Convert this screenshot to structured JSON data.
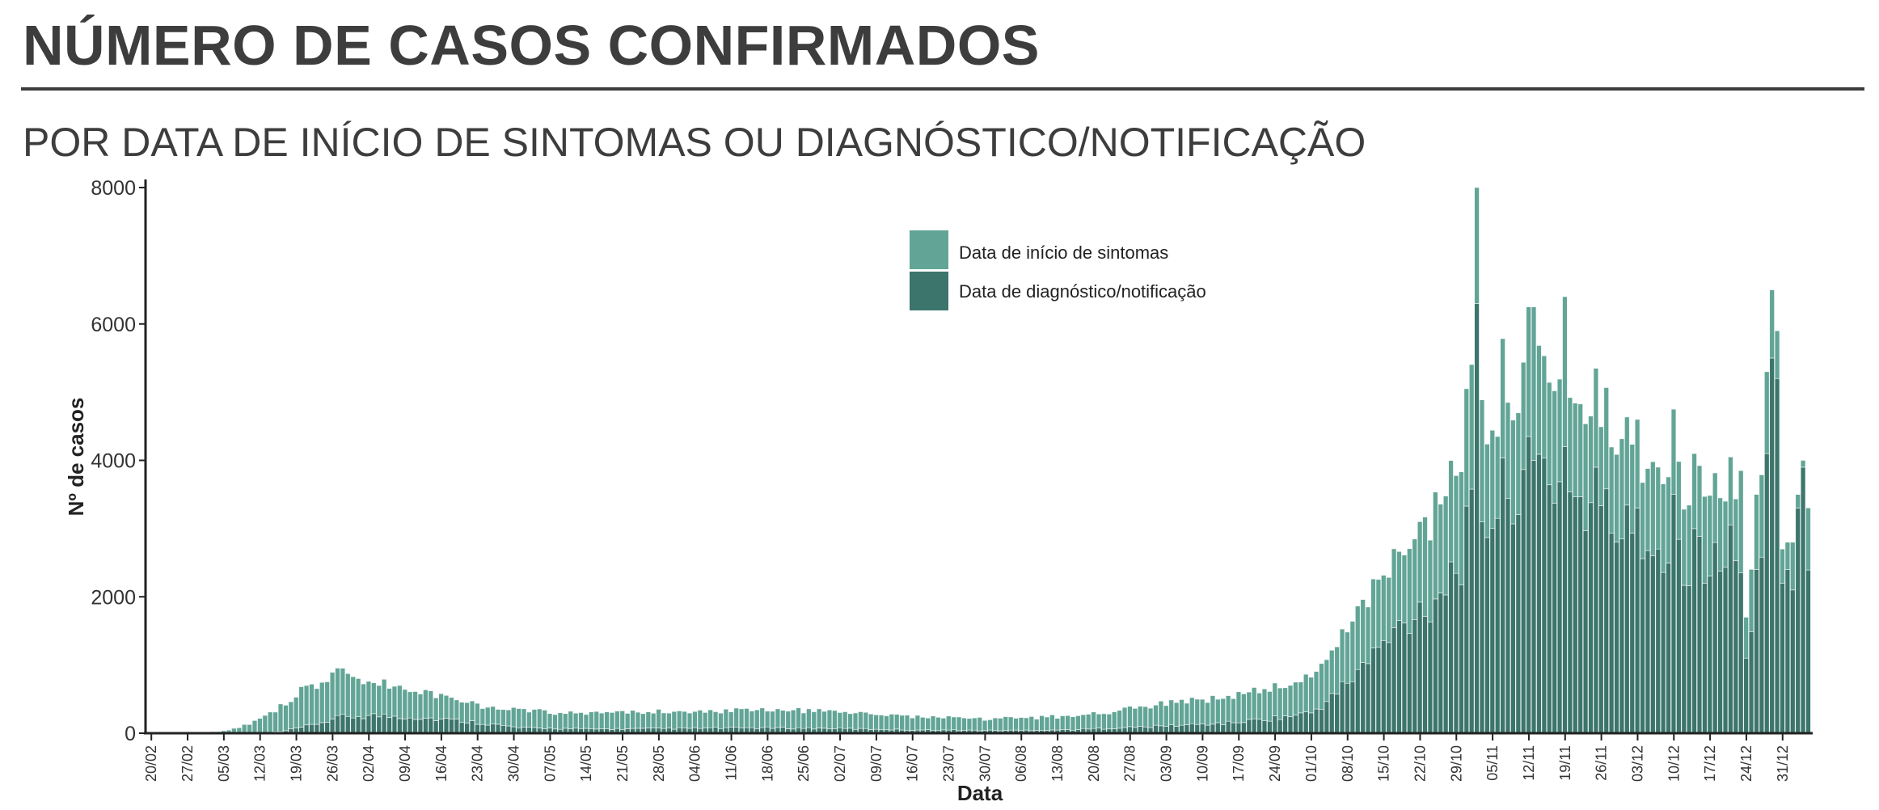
{
  "header": {
    "title": "NÚMERO DE CASOS CONFIRMADOS",
    "subtitle": "POR DATA DE INÍCIO DE SINTOMAS OU DIAGNÓSTICO/NOTIFICAÇÃO"
  },
  "colors": {
    "sintomas": "#62a596",
    "diagnostico": "#3c756b",
    "bar_edge": "#f3f7f6",
    "axis": "#222222"
  },
  "chart_data": {
    "type": "bar",
    "stacked": true,
    "title": "",
    "xlabel": "Data",
    "ylabel": "Nº de casos",
    "ylim": [
      0,
      8000
    ],
    "yticks": [
      0,
      2000,
      4000,
      6000,
      8000
    ],
    "x_start": "2020-02-20",
    "x_end": "2021-01-05",
    "xtick_labels": [
      "20/02",
      "27/02",
      "05/03",
      "12/03",
      "19/03",
      "26/03",
      "02/04",
      "09/04",
      "16/04",
      "23/04",
      "30/04",
      "07/05",
      "14/05",
      "21/05",
      "28/05",
      "04/06",
      "11/06",
      "18/06",
      "25/06",
      "02/07",
      "09/07",
      "16/07",
      "23/07",
      "30/07",
      "06/08",
      "13/08",
      "20/08",
      "27/08",
      "03/09",
      "10/09",
      "17/09",
      "24/09",
      "01/10",
      "08/10",
      "15/10",
      "22/10",
      "29/10",
      "05/11",
      "12/11",
      "19/11",
      "26/11",
      "03/12",
      "10/12",
      "17/12",
      "24/12",
      "31/12"
    ],
    "legend": {
      "position": "top-center",
      "entries": [
        "Data de início de sintomas",
        "Data de diagnóstico/notificação"
      ]
    },
    "grid": false,
    "series": [
      {
        "name": "Data de início de sintomas",
        "anchors": [
          [
            "2020-02-20",
            0
          ],
          [
            "2020-03-01",
            5
          ],
          [
            "2020-03-05",
            30
          ],
          [
            "2020-03-08",
            80
          ],
          [
            "2020-03-12",
            200
          ],
          [
            "2020-03-16",
            380
          ],
          [
            "2020-03-20",
            520
          ],
          [
            "2020-03-24",
            600
          ],
          [
            "2020-03-28",
            620
          ],
          [
            "2020-04-01",
            560
          ],
          [
            "2020-04-05",
            480
          ],
          [
            "2020-04-09",
            440
          ],
          [
            "2020-04-14",
            380
          ],
          [
            "2020-04-20",
            300
          ],
          [
            "2020-04-26",
            250
          ],
          [
            "2020-05-03",
            250
          ],
          [
            "2020-05-12",
            230
          ],
          [
            "2020-05-22",
            240
          ],
          [
            "2020-06-01",
            240
          ],
          [
            "2020-06-11",
            250
          ],
          [
            "2020-06-20",
            260
          ],
          [
            "2020-06-30",
            250
          ],
          [
            "2020-07-10",
            240
          ],
          [
            "2020-07-20",
            190
          ],
          [
            "2020-07-30",
            170
          ],
          [
            "2020-08-09",
            190
          ],
          [
            "2020-08-19",
            210
          ],
          [
            "2020-08-26",
            260
          ],
          [
            "2020-09-03",
            330
          ],
          [
            "2020-09-10",
            380
          ],
          [
            "2020-09-17",
            400
          ],
          [
            "2020-09-24",
            440
          ],
          [
            "2020-10-01",
            560
          ],
          [
            "2020-10-06",
            650
          ],
          [
            "2020-10-10",
            820
          ],
          [
            "2020-10-15",
            950
          ],
          [
            "2020-10-20",
            1150
          ],
          [
            "2020-10-25",
            1400
          ],
          [
            "2020-10-30",
            1600
          ],
          [
            "2020-11-01",
            1700
          ],
          [
            "2020-11-05",
            1500
          ],
          [
            "2020-11-10",
            1700
          ],
          [
            "2020-11-14",
            1650
          ],
          [
            "2020-11-19",
            1500
          ],
          [
            "2020-11-25",
            1350
          ],
          [
            "2020-12-01",
            1300
          ],
          [
            "2020-12-08",
            1250
          ],
          [
            "2020-12-14",
            1150
          ],
          [
            "2020-12-20",
            1050
          ],
          [
            "2020-12-24",
            950
          ],
          [
            "2020-12-27",
            1150
          ],
          [
            "2020-12-30",
            1200
          ],
          [
            "2021-01-03",
            900
          ],
          [
            "2021-01-05",
            900
          ]
        ]
      },
      {
        "name": "Data de diagnóstico/notificação",
        "anchors": [
          [
            "2020-02-20",
            0
          ],
          [
            "2020-03-10",
            5
          ],
          [
            "2020-03-16",
            20
          ],
          [
            "2020-03-22",
            120
          ],
          [
            "2020-03-28",
            240
          ],
          [
            "2020-04-03",
            260
          ],
          [
            "2020-04-10",
            240
          ],
          [
            "2020-04-17",
            200
          ],
          [
            "2020-04-24",
            150
          ],
          [
            "2020-05-01",
            80
          ],
          [
            "2020-05-15",
            60
          ],
          [
            "2020-06-01",
            70
          ],
          [
            "2020-06-15",
            80
          ],
          [
            "2020-07-01",
            70
          ],
          [
            "2020-07-15",
            50
          ],
          [
            "2020-08-01",
            40
          ],
          [
            "2020-08-15",
            50
          ],
          [
            "2020-09-01",
            100
          ],
          [
            "2020-09-15",
            150
          ],
          [
            "2020-09-25",
            230
          ],
          [
            "2020-10-01",
            300
          ],
          [
            "2020-10-05",
            520
          ],
          [
            "2020-10-10",
            900
          ],
          [
            "2020-10-15",
            1300
          ],
          [
            "2020-10-20",
            1700
          ],
          [
            "2020-10-25",
            2000
          ],
          [
            "2020-10-30",
            2600
          ],
          [
            "2020-11-02",
            3300
          ],
          [
            "2020-11-05",
            3200
          ],
          [
            "2020-11-09",
            3700
          ],
          [
            "2020-11-13",
            4000
          ],
          [
            "2020-11-17",
            3700
          ],
          [
            "2020-11-22",
            3400
          ],
          [
            "2020-11-28",
            3100
          ],
          [
            "2020-12-03",
            2850
          ],
          [
            "2020-12-08",
            2750
          ],
          [
            "2020-12-13",
            2600
          ],
          [
            "2020-12-18",
            2450
          ],
          [
            "2020-12-22",
            2300
          ],
          [
            "2020-12-24",
            1300
          ],
          [
            "2020-12-27",
            2700
          ],
          [
            "2020-12-29",
            3700
          ],
          [
            "2020-12-31",
            3200
          ],
          [
            "2021-01-02",
            2200
          ],
          [
            "2021-01-05",
            2700
          ]
        ]
      }
    ],
    "overrides": [
      [
        "2020-11-02",
        6300,
        1700
      ],
      [
        "2020-11-06",
        3150,
        1200
      ],
      [
        "2020-11-12",
        4350,
        1900
      ],
      [
        "2020-11-13",
        4000,
        2250
      ],
      [
        "2020-11-19",
        4200,
        2200
      ],
      [
        "2020-11-25",
        3900,
        1450
      ],
      [
        "2020-12-03",
        3300,
        1300
      ],
      [
        "2020-12-07",
        2700,
        1200
      ],
      [
        "2020-12-10",
        3500,
        1250
      ],
      [
        "2020-12-14",
        3000,
        1100
      ],
      [
        "2020-12-21",
        3050,
        1000
      ],
      [
        "2020-12-23",
        2350,
        1500
      ],
      [
        "2020-12-24",
        1100,
        600
      ],
      [
        "2020-12-26",
        2400,
        1100
      ],
      [
        "2020-12-28",
        4100,
        1200
      ],
      [
        "2020-12-29",
        5500,
        1000
      ],
      [
        "2020-12-30",
        5200,
        700
      ],
      [
        "2020-12-31",
        2200,
        500
      ],
      [
        "2021-01-01",
        2400,
        400
      ],
      [
        "2021-01-02",
        2100,
        700
      ],
      [
        "2021-01-03",
        3300,
        200
      ],
      [
        "2021-01-04",
        3900,
        100
      ]
    ]
  }
}
